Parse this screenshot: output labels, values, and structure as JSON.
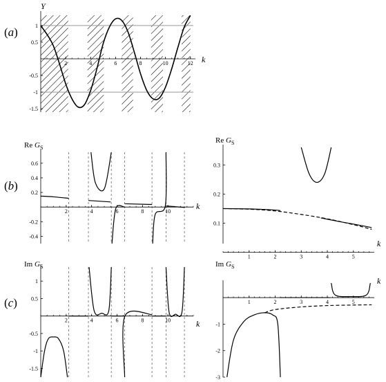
{
  "panel_labels": [
    {
      "open": "(",
      "letter": "a",
      "close": ")"
    },
    {
      "open": "(",
      "letter": "b",
      "close": ")"
    },
    {
      "open": "(",
      "letter": "c",
      "close": ")"
    }
  ],
  "chart_data": [
    {
      "id": "a",
      "type": "line",
      "ylabel": "Y",
      "xlabel": "k",
      "xlim": [
        0,
        12.4
      ],
      "ylim": [
        -1.6,
        1.35
      ],
      "xticks": [
        "2",
        "4",
        "6",
        "8",
        "10",
        "12"
      ],
      "yticks": [
        "1",
        "0.5",
        "-0.5",
        "-1",
        "-1.5"
      ],
      "reference_lines_y": [
        1,
        -1
      ],
      "hatched_bands_k": [
        [
          0,
          2.2
        ],
        [
          3.75,
          5.05
        ],
        [
          6.5,
          7.4
        ],
        [
          8.85,
          9.8
        ],
        [
          11.3,
          12.0
        ]
      ],
      "series": [
        {
          "values": [
            [
              0,
              1.0
            ],
            [
              1,
              0.4
            ],
            [
              2,
              -0.75
            ],
            [
              2.5,
              -1.2
            ],
            [
              3,
              -1.45
            ],
            [
              3.5,
              -1.38
            ],
            [
              4,
              -0.95
            ],
            [
              4.5,
              -0.3
            ],
            [
              5,
              0.45
            ],
            [
              5.5,
              0.95
            ],
            [
              6,
              1.2
            ],
            [
              6.5,
              1.15
            ],
            [
              7,
              0.8
            ],
            [
              7.5,
              0.2
            ],
            [
              8,
              -0.45
            ],
            [
              8.5,
              -0.95
            ],
            [
              9,
              -1.2
            ],
            [
              9.5,
              -1.18
            ],
            [
              10,
              -0.85
            ],
            [
              10.5,
              -0.3
            ],
            [
              11,
              0.35
            ],
            [
              11.5,
              0.95
            ],
            [
              12,
              1.3
            ]
          ]
        }
      ]
    },
    {
      "id": "b-left",
      "type": "line",
      "ylabel": {
        "prefix": "Re ",
        "sym": "G",
        "sub": "S"
      },
      "xlabel": "k",
      "xlim": [
        0,
        12
      ],
      "ylim": [
        -0.5,
        0.75
      ],
      "xticks": [
        "2",
        "4",
        "6",
        "8",
        "10"
      ],
      "yticks": [
        "0.6",
        "0.4",
        "0.2",
        "-0.2",
        "-0.4"
      ],
      "dashed_verticals_k": [
        2.2,
        3.75,
        5.55,
        6.6,
        8.75,
        9.85,
        11.3
      ],
      "series": [
        {
          "values": [
            [
              0,
              0.15
            ],
            [
              1,
              0.14
            ],
            [
              2.2,
              0.12
            ]
          ]
        },
        {
          "values": [
            [
              3.75,
              0.09
            ],
            [
              5.5,
              0.07
            ]
          ]
        },
        {
          "values": [
            [
              6.6,
              0.045
            ],
            [
              8.75,
              0.035
            ]
          ]
        },
        {
          "values": [
            [
              9.85,
              0.015
            ],
            [
              11.3,
              -0.005
            ]
          ]
        },
        {
          "values": [
            [
              3.95,
              0.75
            ],
            [
              4.3,
              0.33
            ],
            [
              5.0,
              0.25
            ],
            [
              5.55,
              0.75
            ]
          ]
        },
        {
          "values": [
            [
              5.6,
              -0.5
            ],
            [
              5.9,
              -0.02
            ],
            [
              6.58,
              0.0
            ]
          ]
        },
        {
          "values": [
            [
              8.8,
              -0.5
            ],
            [
              9.0,
              -0.1
            ],
            [
              9.8,
              0.02
            ],
            [
              9.85,
              0.75
            ]
          ]
        }
      ]
    },
    {
      "id": "b-right",
      "type": "line",
      "ylabel": {
        "prefix": "Re ",
        "sym": "G",
        "sub": "S"
      },
      "xlabel": "k",
      "xlim": [
        0,
        5.8
      ],
      "ylim": [
        0.03,
        0.36
      ],
      "xticks": [
        "1",
        "2",
        "3",
        "4",
        "5"
      ],
      "yticks": [
        "0.3",
        "0.2",
        "0.1"
      ],
      "series": [
        {
          "values": [
            [
              0,
              0.15
            ],
            [
              1,
              0.149
            ],
            [
              2,
              0.145
            ],
            [
              2.2,
              0.143
            ]
          ]
        },
        {
          "values": [
            [
              3.75,
              0.118
            ],
            [
              4.5,
              0.105
            ],
            [
              5,
              0.097
            ],
            [
              5.7,
              0.085
            ]
          ]
        },
        {
          "values": [
            [
              3.0,
              0.36
            ],
            [
              3.3,
              0.27
            ],
            [
              3.6,
              0.24
            ],
            [
              3.9,
              0.27
            ],
            [
              4.15,
              0.36
            ]
          ]
        }
      ],
      "dashed_series": [
        {
          "values": [
            [
              0,
              0.15
            ],
            [
              1,
              0.148
            ],
            [
              2,
              0.142
            ],
            [
              3,
              0.13
            ],
            [
              4,
              0.115
            ],
            [
              5,
              0.095
            ],
            [
              5.7,
              0.079
            ]
          ]
        }
      ]
    },
    {
      "id": "c-left",
      "type": "line",
      "ylabel": {
        "prefix": "Im ",
        "sym": "G",
        "sub": "S"
      },
      "xlabel": "k",
      "xlim": [
        0,
        12
      ],
      "ylim": [
        -1.75,
        1.4
      ],
      "xticks": [
        "2",
        "4",
        "6",
        "8",
        "10"
      ],
      "yticks": [
        "1",
        "0.5",
        "-0.5",
        "-1",
        "-1.5"
      ],
      "dashed_verticals_k": [
        2.2,
        3.75,
        5.55,
        6.6,
        8.75,
        9.85,
        11.3
      ],
      "series": [
        {
          "values": [
            [
              0,
              -1.75
            ],
            [
              0.3,
              -1.0
            ],
            [
              0.6,
              -0.65
            ],
            [
              1.0,
              -0.6
            ],
            [
              1.4,
              -0.65
            ],
            [
              1.8,
              -1.0
            ],
            [
              2.1,
              -1.75
            ]
          ]
        },
        {
          "values": [
            [
              2.2,
              0.0
            ],
            [
              3.75,
              0.0
            ]
          ]
        },
        {
          "values": [
            [
              3.8,
              1.4
            ],
            [
              4.2,
              0.15
            ],
            [
              4.8,
              0.08
            ],
            [
              5.35,
              0.15
            ],
            [
              5.55,
              1.4
            ]
          ]
        },
        {
          "values": [
            [
              5.55,
              0.0
            ],
            [
              6.6,
              0.0
            ]
          ]
        },
        {
          "values": [
            [
              6.6,
              -1.75
            ],
            [
              6.62,
              0.0
            ],
            [
              8.75,
              0.04
            ]
          ]
        },
        {
          "values": [
            [
              8.75,
              0.0
            ],
            [
              9.85,
              0.0
            ]
          ]
        },
        {
          "values": [
            [
              9.85,
              1.4
            ],
            [
              10.1,
              0.1
            ],
            [
              10.6,
              0.05
            ],
            [
              11.1,
              0.1
            ],
            [
              11.3,
              1.4
            ]
          ]
        }
      ]
    },
    {
      "id": "c-right",
      "type": "line",
      "ylabel": {
        "prefix": "Im ",
        "sym": "G",
        "sub": "S"
      },
      "xlabel": "k",
      "xlim": [
        0,
        5.8
      ],
      "ylim": [
        -3.0,
        0.55
      ],
      "xticks": [
        "1",
        "2",
        "3",
        "4",
        "5"
      ],
      "yticks": [
        "-1",
        "-2",
        "-3"
      ],
      "series": [
        {
          "values": [
            [
              0.15,
              -3.0
            ],
            [
              0.4,
              -1.6
            ],
            [
              0.8,
              -0.9
            ],
            [
              1.2,
              -0.65
            ],
            [
              1.6,
              -0.57
            ],
            [
              1.9,
              -0.65
            ],
            [
              2.1,
              -1.0
            ],
            [
              2.2,
              -3.0
            ]
          ]
        },
        {
          "values": [
            [
              2.2,
              0.0
            ],
            [
              4.1,
              0.0
            ]
          ]
        },
        {
          "values": [
            [
              4.15,
              0.55
            ],
            [
              4.3,
              0.1
            ],
            [
              4.9,
              0.04
            ],
            [
              5.5,
              0.1
            ],
            [
              5.65,
              0.55
            ]
          ]
        }
      ],
      "dashed_series": [
        {
          "values": [
            [
              1.6,
              -0.57
            ],
            [
              2,
              -0.45
            ],
            [
              3,
              -0.35
            ],
            [
              4,
              -0.3
            ],
            [
              5,
              -0.28
            ],
            [
              5.7,
              -0.27
            ]
          ]
        }
      ]
    }
  ]
}
